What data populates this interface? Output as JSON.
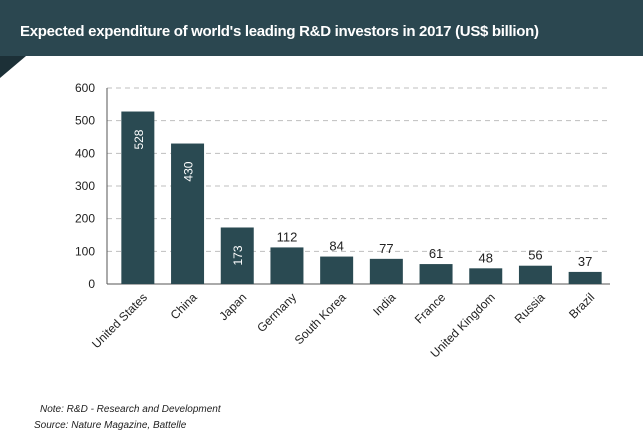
{
  "header": {
    "title": "Expected expenditure of world's leading R&D investors in 2017 (US$ billion)"
  },
  "footer": {
    "note": "Note: R&D - Research and Development",
    "source": "Source: Nature Magazine, Battelle"
  },
  "colors": {
    "header_bg": "#2b4750",
    "bar": "#2a4a52",
    "grid": "#bfbfbf"
  },
  "chart_data": {
    "type": "bar",
    "title": "Expected expenditure of world's leading R&D investors in 2017 (US$ billion)",
    "categories": [
      "United States",
      "China",
      "Japan",
      "Germany",
      "South Korea",
      "India",
      "France",
      "United Kingdom",
      "Russia",
      "Brazil"
    ],
    "values": [
      528,
      430,
      173,
      112,
      84,
      77,
      61,
      48,
      56,
      37
    ],
    "yticks": [
      0,
      100,
      200,
      300,
      400,
      500,
      600
    ],
    "ylim": [
      0,
      600
    ],
    "grid": true,
    "legend": "none"
  }
}
